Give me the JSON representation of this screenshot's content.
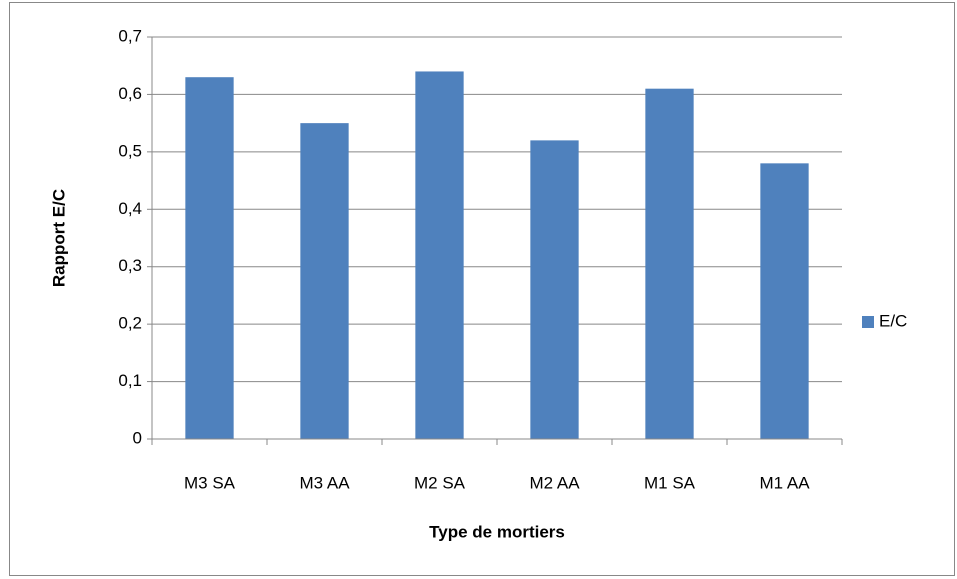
{
  "chart_data": {
    "type": "bar",
    "x_label": "Type de mortiers",
    "y_label": "Rapport E/C",
    "categories": [
      "M3 SA",
      "M3 AA",
      "M2 SA",
      "M2 AA",
      "M1 SA",
      "M1 AA"
    ],
    "series": [
      {
        "name": "E/C",
        "color": "#4f81bd",
        "values": [
          0.63,
          0.55,
          0.64,
          0.52,
          0.61,
          0.48
        ]
      }
    ],
    "ylim": [
      0,
      0.7
    ],
    "yticks": [
      0,
      {
        "value": 0.1,
        "label": "0,1"
      },
      {
        "value": 0.2,
        "label": "0,2"
      },
      {
        "value": 0.3,
        "label": "0,3"
      },
      {
        "value": 0.4,
        "label": "0,4"
      },
      {
        "value": 0.5,
        "label": "0,5"
      },
      {
        "value": 0.6,
        "label": "0,6"
      },
      {
        "value": 0.7,
        "label": "0,7"
      }
    ],
    "grid": true,
    "legend": "right"
  }
}
